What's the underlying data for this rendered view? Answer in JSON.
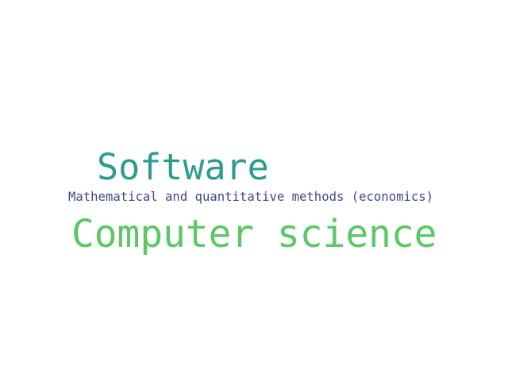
{
  "word_cloud": {
    "words": [
      {
        "text": "Software",
        "color": "#2a9d8f"
      },
      {
        "text": "Mathematical and quantitative methods (economics)",
        "color": "#3f4a8a"
      },
      {
        "text": "Computer science",
        "color": "#5ac864"
      }
    ]
  }
}
